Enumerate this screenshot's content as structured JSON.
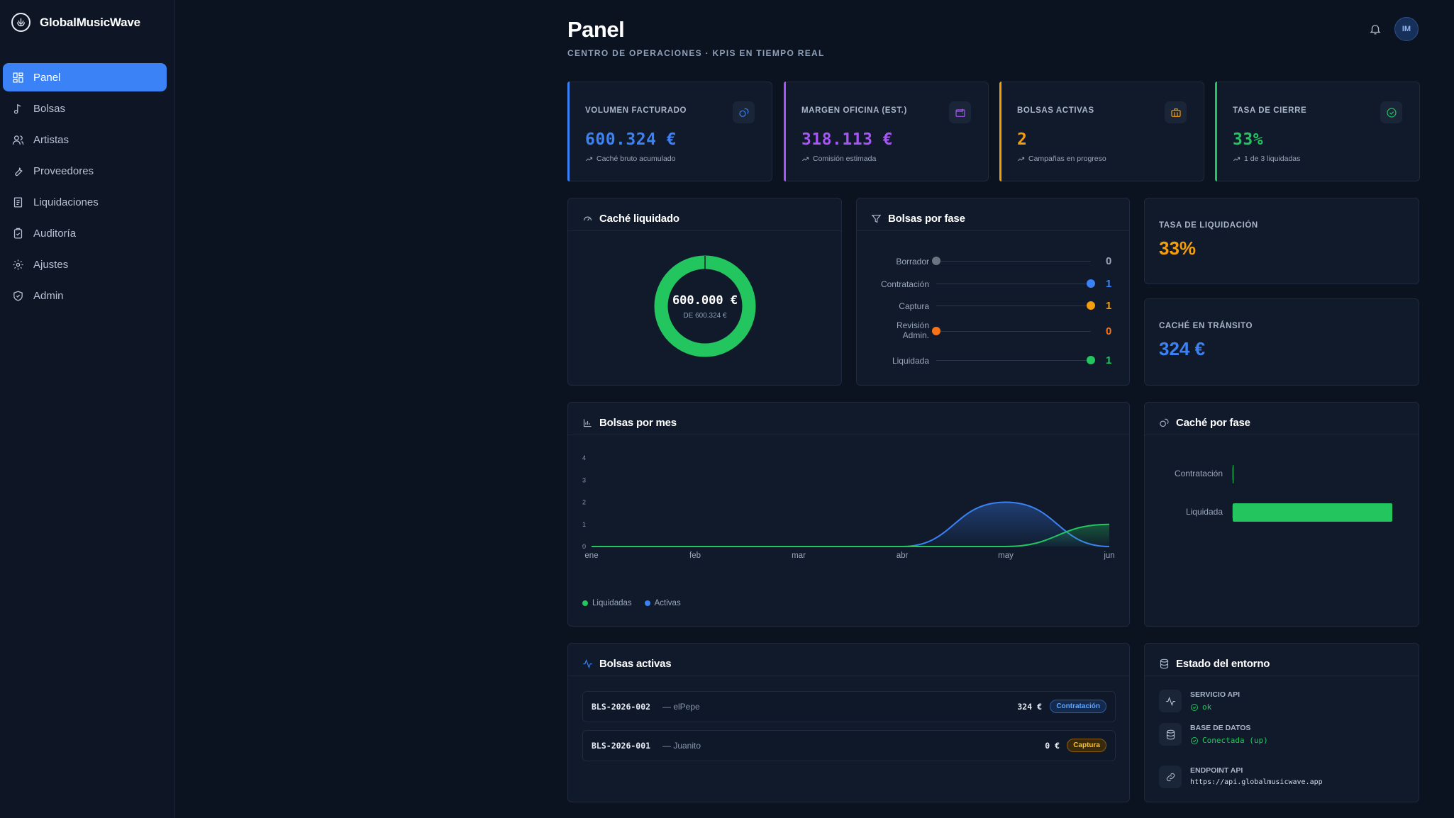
{
  "brand": {
    "name": "GlobalMusicWave"
  },
  "sidebar": {
    "items": [
      {
        "label": "Panel",
        "icon": "dashboard-icon",
        "active": true
      },
      {
        "label": "Bolsas",
        "icon": "music-note-icon"
      },
      {
        "label": "Artistas",
        "icon": "users-icon"
      },
      {
        "label": "Proveedores",
        "icon": "wrench-icon"
      },
      {
        "label": "Liquidaciones",
        "icon": "receipt-icon"
      },
      {
        "label": "Auditoría",
        "icon": "clipboard-check-icon"
      },
      {
        "label": "Ajustes",
        "icon": "gear-icon"
      },
      {
        "label": "Admin",
        "icon": "shield-icon"
      }
    ]
  },
  "header": {
    "title": "Panel",
    "subtitle": "CENTRO DE OPERACIONES · KPIS EN TIEMPO REAL",
    "avatar": "IM"
  },
  "kpis": [
    {
      "label": "VOLUMEN FACTURADO",
      "value": "600.324 €",
      "note": "Caché bruto acumulado",
      "color": "#3b82f6",
      "icon": "coins-icon"
    },
    {
      "label": "MARGEN OFICINA (EST.)",
      "value": "318.113 €",
      "note": "Comisión estimada",
      "color": "#a855f7",
      "icon": "wallet-icon"
    },
    {
      "label": "BOLSAS ACTIVAS",
      "value": "2",
      "note": "Campañas en progreso",
      "color": "#f59e0b",
      "icon": "briefcase-icon"
    },
    {
      "label": "TASA DE CIERRE",
      "value": "33%",
      "note": "1 de 3 liquidadas",
      "color": "#22c55e",
      "icon": "check-circle-icon"
    }
  ],
  "cache_liquidado": {
    "title": "Caché liquidado",
    "value": "600.000 €",
    "sub": "DE 600.324 €",
    "fraction": 0.9995
  },
  "bolsas_fase": {
    "title": "Bolsas por fase",
    "rows": [
      {
        "label": "Borrador",
        "value": "0",
        "color": "#6b7280",
        "fraction": 0
      },
      {
        "label": "Contratación",
        "value": "1",
        "color": "#3b82f6",
        "fraction": 1
      },
      {
        "label": "Captura",
        "value": "1",
        "color": "#f59e0b",
        "fraction": 1
      },
      {
        "label": "Revisión Admin.",
        "value": "0",
        "color": "#f97316",
        "fraction": 0
      },
      {
        "label": "Liquidada",
        "value": "1",
        "color": "#22c55e",
        "fraction": 1
      }
    ]
  },
  "tasa_liquidacion": {
    "label": "TASA DE LIQUIDACIÓN",
    "value": "33%"
  },
  "cache_transito": {
    "label": "CACHÉ EN TRÁNSITO",
    "value": "324 €"
  },
  "chart_data": [
    {
      "type": "area",
      "title": "Bolsas por mes",
      "categories": [
        "ene",
        "feb",
        "mar",
        "abr",
        "may",
        "jun"
      ],
      "series": [
        {
          "name": "Liquidadas",
          "values": [
            0,
            0,
            0,
            0,
            0,
            1
          ],
          "color": "#22c55e"
        },
        {
          "name": "Activas",
          "values": [
            0,
            0,
            0,
            0,
            2,
            0
          ],
          "color": "#3b82f6"
        }
      ],
      "yticks": [
        "0",
        "1",
        "2",
        "3",
        "4"
      ],
      "ylim": [
        0,
        4
      ],
      "legend": "bottom-left",
      "grid": false
    },
    {
      "type": "bar",
      "title": "Caché por fase",
      "categories": [
        "Contratación",
        "Liquidada"
      ],
      "values": [
        324,
        600000
      ],
      "color": "#22c55e",
      "orientation": "horizontal"
    }
  ],
  "bolsas_activas": {
    "title": "Bolsas activas",
    "rows": [
      {
        "code": "BLS-2026-002",
        "artist": "— elPepe",
        "amount": "324 €",
        "badge": "Contratación",
        "badge_color": "#3b82f6"
      },
      {
        "code": "BLS-2026-001",
        "artist": "— Juanito",
        "amount": "0 €",
        "badge": "Captura",
        "badge_color": "#f59e0b"
      }
    ]
  },
  "entorno": {
    "title": "Estado del entorno",
    "api": {
      "label": "SERVICIO API",
      "value": "ok"
    },
    "db": {
      "label": "BASE DE DATOS",
      "value": "Conectada (up)"
    },
    "endpoint": {
      "label": "ENDPOINT API",
      "value": "https://api.globalmusicwave.app"
    }
  }
}
